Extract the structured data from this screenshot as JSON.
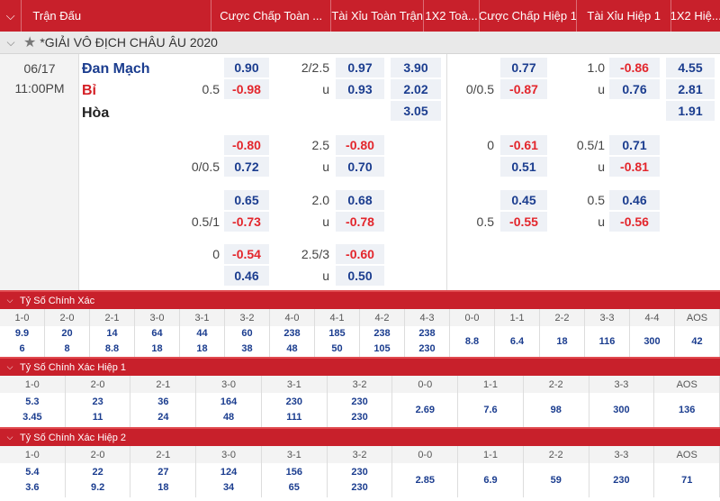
{
  "header": {
    "cols": [
      "Trận Đấu",
      "Cược Chấp Toàn ...",
      "Tài Xỉu Toàn Trận",
      "1X2 Toà...",
      "Cược Chấp Hiệp 1",
      "Tài Xỉu Hiệp 1",
      "1X2 Hiệ..."
    ]
  },
  "league": {
    "name": "*GIẢI VÔ ĐỊCH CHÂU ÂU 2020"
  },
  "match": {
    "date": "06/17",
    "time": "11:00PM",
    "home": "Đan Mạch",
    "away": "Bỉ",
    "draw": "Hòa"
  },
  "odds": {
    "l1": [
      "0.5",
      "2/2.5",
      "u",
      "0.90",
      "-0.98",
      "0.97",
      "0.93",
      "3.90",
      "2.02",
      "3.05",
      "0/0.5",
      "1.0",
      "u",
      "0.77",
      "-0.87",
      "-0.86",
      "0.76",
      "4.55",
      "2.81",
      "1.91"
    ],
    "l2": [
      "0/0.5",
      "2.5",
      "u",
      "-0.80",
      "0.72",
      "-0.80",
      "0.70",
      "0",
      "0.5/1",
      "u",
      "-0.61",
      "0.51",
      "0.71",
      "-0.81"
    ],
    "l3": [
      "0.5/1",
      "2.0",
      "u",
      "0.65",
      "-0.73",
      "0.68",
      "-0.78",
      "0.5",
      "0.5",
      "u",
      "0.45",
      "-0.55",
      "0.46",
      "-0.56"
    ],
    "l4": [
      "0",
      "2.5/3",
      "u",
      "-0.54",
      "0.46",
      "-0.60",
      "0.50"
    ]
  },
  "sections": [
    {
      "title": "Tỷ Số Chính Xác",
      "headers": [
        "1-0",
        "2-0",
        "2-1",
        "3-0",
        "3-1",
        "3-2",
        "4-0",
        "4-1",
        "4-2",
        "4-3",
        "0-0",
        "1-1",
        "2-2",
        "3-3",
        "4-4",
        "AOS"
      ],
      "values": [
        [
          "9.9",
          "6"
        ],
        [
          "20",
          "8"
        ],
        [
          "14",
          "8.8"
        ],
        [
          "64",
          "18"
        ],
        [
          "44",
          "18"
        ],
        [
          "60",
          "38"
        ],
        [
          "238",
          "48"
        ],
        [
          "185",
          "50"
        ],
        [
          "238",
          "105"
        ],
        [
          "238",
          "230"
        ],
        [
          "8.8"
        ],
        [
          "6.4"
        ],
        [
          "18"
        ],
        [
          "116"
        ],
        [
          "300"
        ],
        [
          "42"
        ]
      ]
    },
    {
      "title": "Tỷ Số Chính Xác Hiệp 1",
      "headers": [
        "1-0",
        "2-0",
        "2-1",
        "3-0",
        "3-1",
        "3-2",
        "0-0",
        "1-1",
        "2-2",
        "3-3",
        "AOS"
      ],
      "values": [
        [
          "5.3",
          "3.45"
        ],
        [
          "23",
          "11"
        ],
        [
          "36",
          "24"
        ],
        [
          "164",
          "48"
        ],
        [
          "230",
          "111"
        ],
        [
          "230",
          "230"
        ],
        [
          "2.69"
        ],
        [
          "7.6"
        ],
        [
          "98"
        ],
        [
          "300"
        ],
        [
          "136"
        ]
      ]
    },
    {
      "title": "Tỷ Số Chính Xác Hiệp 2",
      "headers": [
        "1-0",
        "2-0",
        "2-1",
        "3-0",
        "3-1",
        "3-2",
        "0-0",
        "1-1",
        "2-2",
        "3-3",
        "AOS"
      ],
      "values": [
        [
          "5.4",
          "3.6"
        ],
        [
          "22",
          "9.2"
        ],
        [
          "27",
          "18"
        ],
        [
          "124",
          "34"
        ],
        [
          "156",
          "65"
        ],
        [
          "230",
          "230"
        ],
        [
          "2.85"
        ],
        [
          "6.9"
        ],
        [
          "59"
        ],
        [
          "230"
        ],
        [
          "71"
        ]
      ]
    }
  ]
}
